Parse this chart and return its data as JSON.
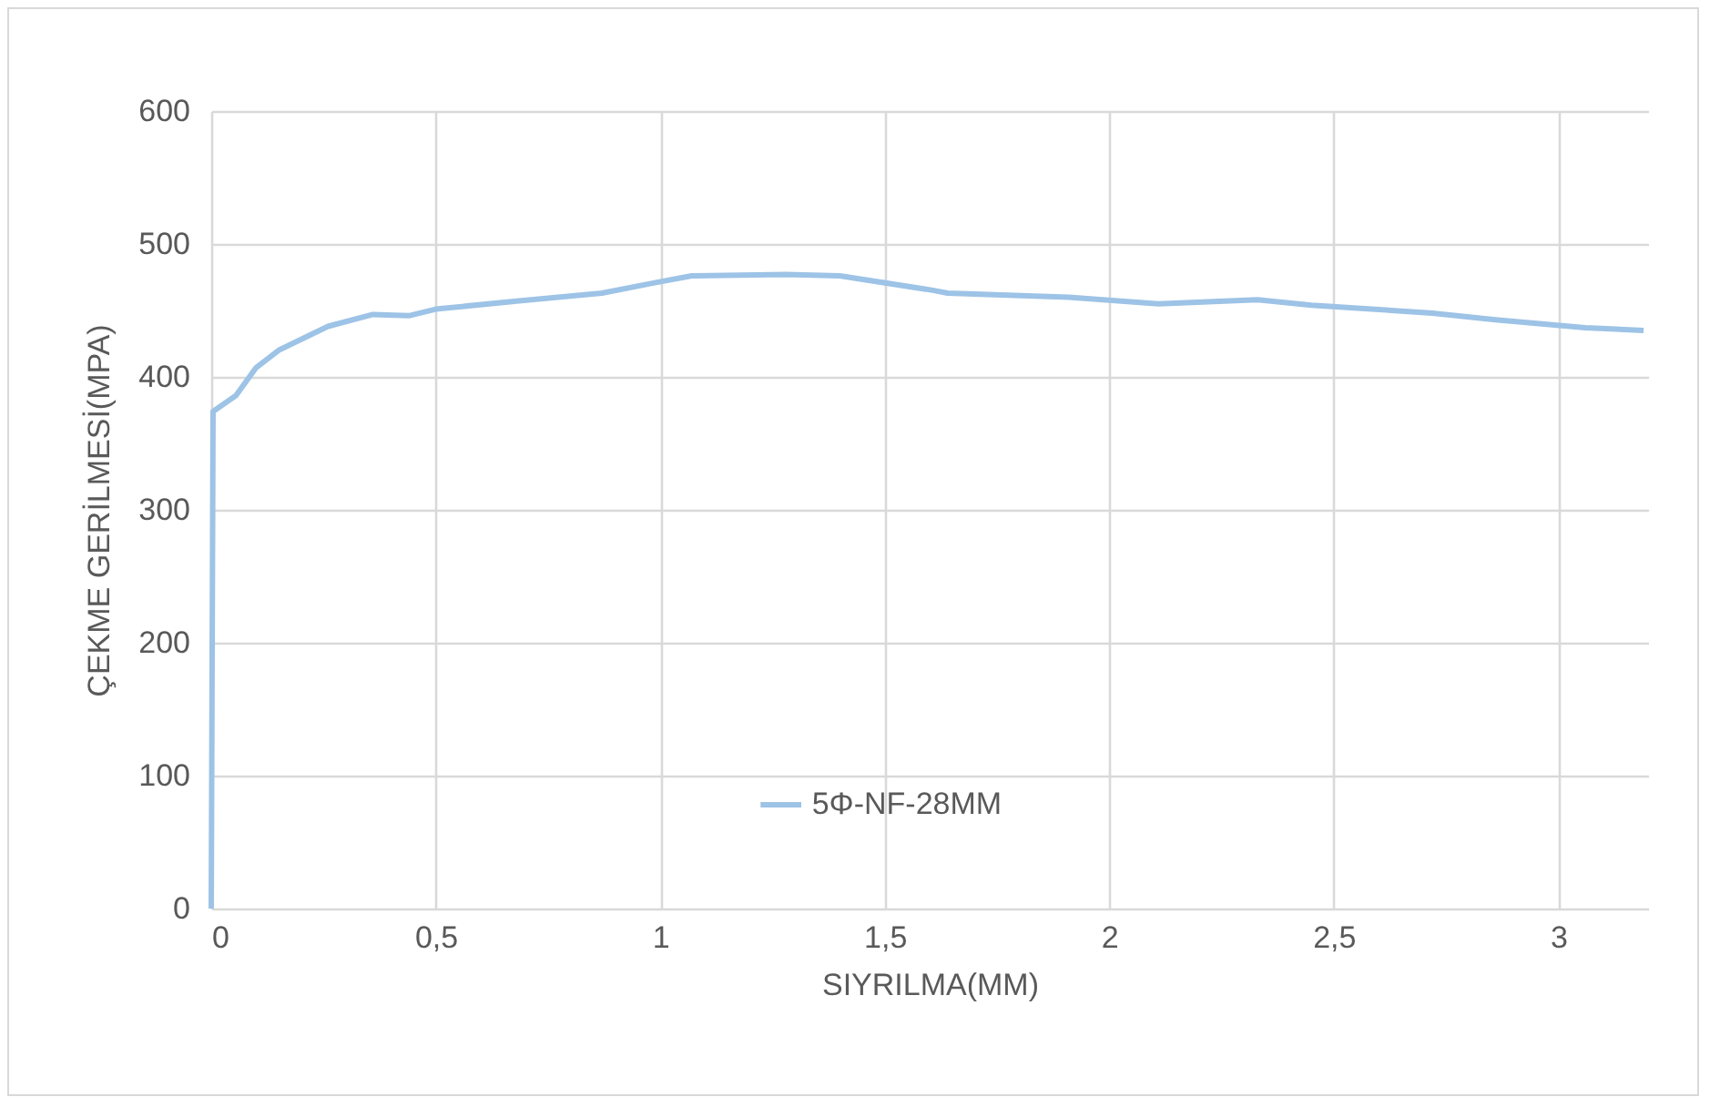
{
  "chart_data": {
    "type": "line",
    "xlabel": "SIYRILMA(MM)",
    "ylabel": "ÇEKME GERİLMESİ(MPA)",
    "xlim": [
      0,
      3.2
    ],
    "xticks": [
      0,
      {
        "value": 0.5,
        "label": "0,5"
      },
      1,
      {
        "value": 1.5,
        "label": "1,5"
      },
      2,
      {
        "value": 2.5,
        "label": "2,5"
      },
      3
    ],
    "ylim": [
      0,
      600
    ],
    "yticks": [
      0,
      100,
      200,
      300,
      400,
      500,
      600
    ],
    "grid": true,
    "legend": "bottom",
    "marker": "none",
    "line_style": "solid",
    "series": [
      {
        "name": "5Φ-NF-28MM",
        "color": "#9dc3e6",
        "x": [
          0,
          0.004,
          0.055,
          0.1,
          0.15,
          0.26,
          0.36,
          0.44,
          0.5,
          0.68,
          0.87,
          0.99,
          1.07,
          1.28,
          1.4,
          1.61,
          1.64,
          1.91,
          2.11,
          2.33,
          2.45,
          2.72,
          2.86,
          3.06,
          3.19
        ],
        "values": [
          0,
          374,
          386,
          407,
          420,
          438,
          447,
          446,
          451,
          457,
          463,
          471,
          476,
          477,
          476,
          465,
          463,
          460,
          455,
          458,
          454,
          448,
          443,
          437,
          435
        ]
      }
    ]
  }
}
